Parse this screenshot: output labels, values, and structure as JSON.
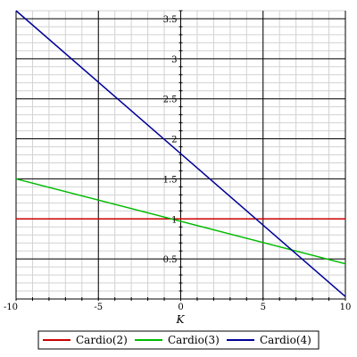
{
  "chart_data": {
    "type": "line",
    "title": "",
    "xlabel": "K",
    "ylabel": "",
    "xlim": [
      -10,
      10
    ],
    "ylim": [
      0,
      3.6
    ],
    "x_ticks": [
      -10,
      -5,
      0,
      5,
      10
    ],
    "x_tick_labels": [
      "-10",
      "-5",
      "0",
      "5",
      "10"
    ],
    "y_ticks": [
      0.5,
      1,
      1.5,
      2,
      2.5,
      3,
      3.5
    ],
    "y_tick_labels": [
      "0.5",
      "1",
      "1.5",
      "2",
      "2.5",
      "3",
      "3.5"
    ],
    "grid": true,
    "legend_position": "bottom",
    "series": [
      {
        "name": "Cardio(2)",
        "color": "#cc0000",
        "x": [
          -10,
          10
        ],
        "y": [
          1.0,
          1.0
        ]
      },
      {
        "name": "Cardio(3)",
        "color": "#00bb00",
        "x": [
          -10,
          10
        ],
        "y": [
          1.5,
          0.44
        ]
      },
      {
        "name": "Cardio(4)",
        "color": "#000099",
        "x": [
          -10,
          10
        ],
        "y": [
          3.6,
          0.03
        ]
      }
    ]
  }
}
